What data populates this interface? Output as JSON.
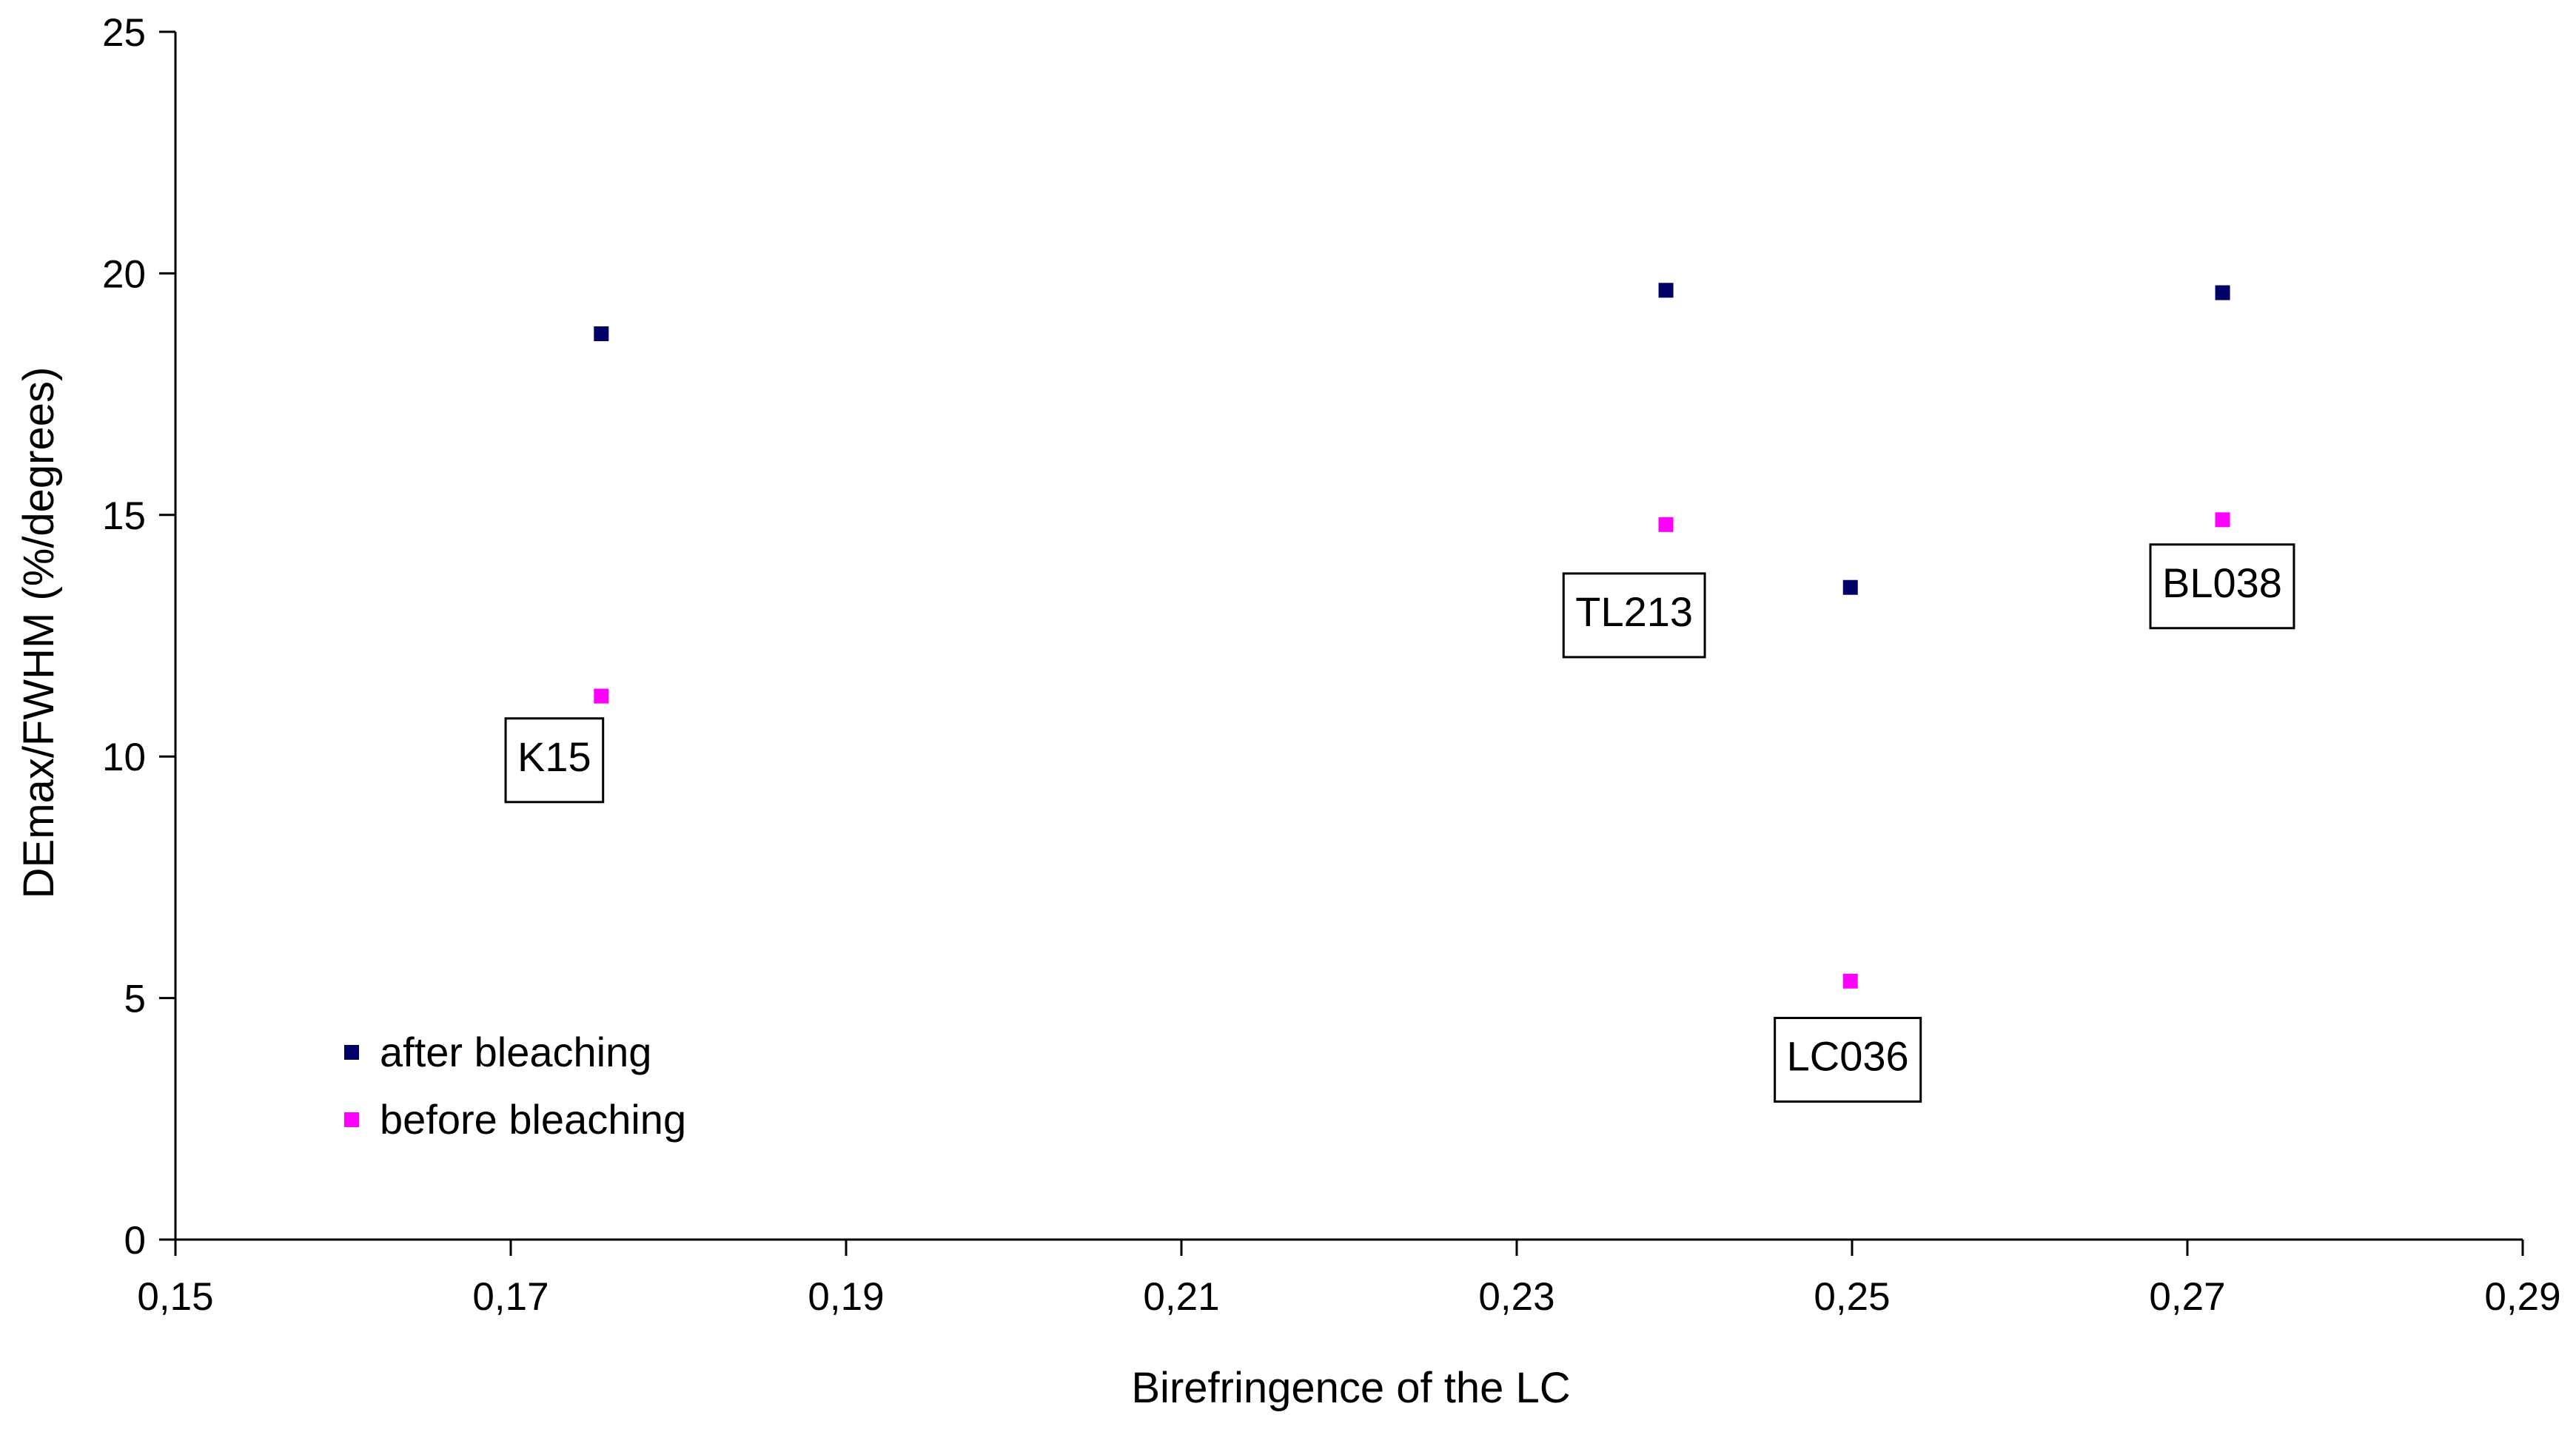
{
  "chart_data": {
    "type": "scatter",
    "title": "",
    "xlabel": "Birefringence of the LC",
    "ylabel": "DEmax/FWHM (%/degrees)",
    "xlim": [
      0.15,
      0.29
    ],
    "ylim": [
      0,
      25
    ],
    "xticks": [
      0.15,
      0.17,
      0.19,
      0.21,
      0.23,
      0.25,
      0.27,
      0.29
    ],
    "xtick_labels": [
      "0,15",
      "0,17",
      "0,19",
      "0,21",
      "0,23",
      "0,25",
      "0,27",
      "0,29"
    ],
    "yticks": [
      0,
      5,
      10,
      15,
      20,
      25
    ],
    "ytick_labels": [
      "0",
      "5",
      "10",
      "15",
      "20",
      "25"
    ],
    "grid": false,
    "legend_position": "bottom-left",
    "series": [
      {
        "name": "after bleaching",
        "color": "#000066",
        "points": [
          {
            "x": 0.1754,
            "y": 18.75
          },
          {
            "x": 0.2389,
            "y": 19.65
          },
          {
            "x": 0.2499,
            "y": 13.5
          },
          {
            "x": 0.2721,
            "y": 19.6
          }
        ]
      },
      {
        "name": "before bleaching",
        "color": "#ff00ff",
        "points": [
          {
            "x": 0.1754,
            "y": 11.25
          },
          {
            "x": 0.2389,
            "y": 14.8
          },
          {
            "x": 0.2499,
            "y": 5.35
          },
          {
            "x": 0.2721,
            "y": 14.9
          }
        ]
      }
    ],
    "annotations": [
      {
        "text": "K15",
        "x": 0.1704,
        "y": 9.7
      },
      {
        "text": "TL213",
        "x": 0.2335,
        "y": 12.7
      },
      {
        "text": "LC036",
        "x": 0.2461,
        "y": 3.5
      },
      {
        "text": "BL038",
        "x": 0.2685,
        "y": 13.3
      }
    ]
  }
}
